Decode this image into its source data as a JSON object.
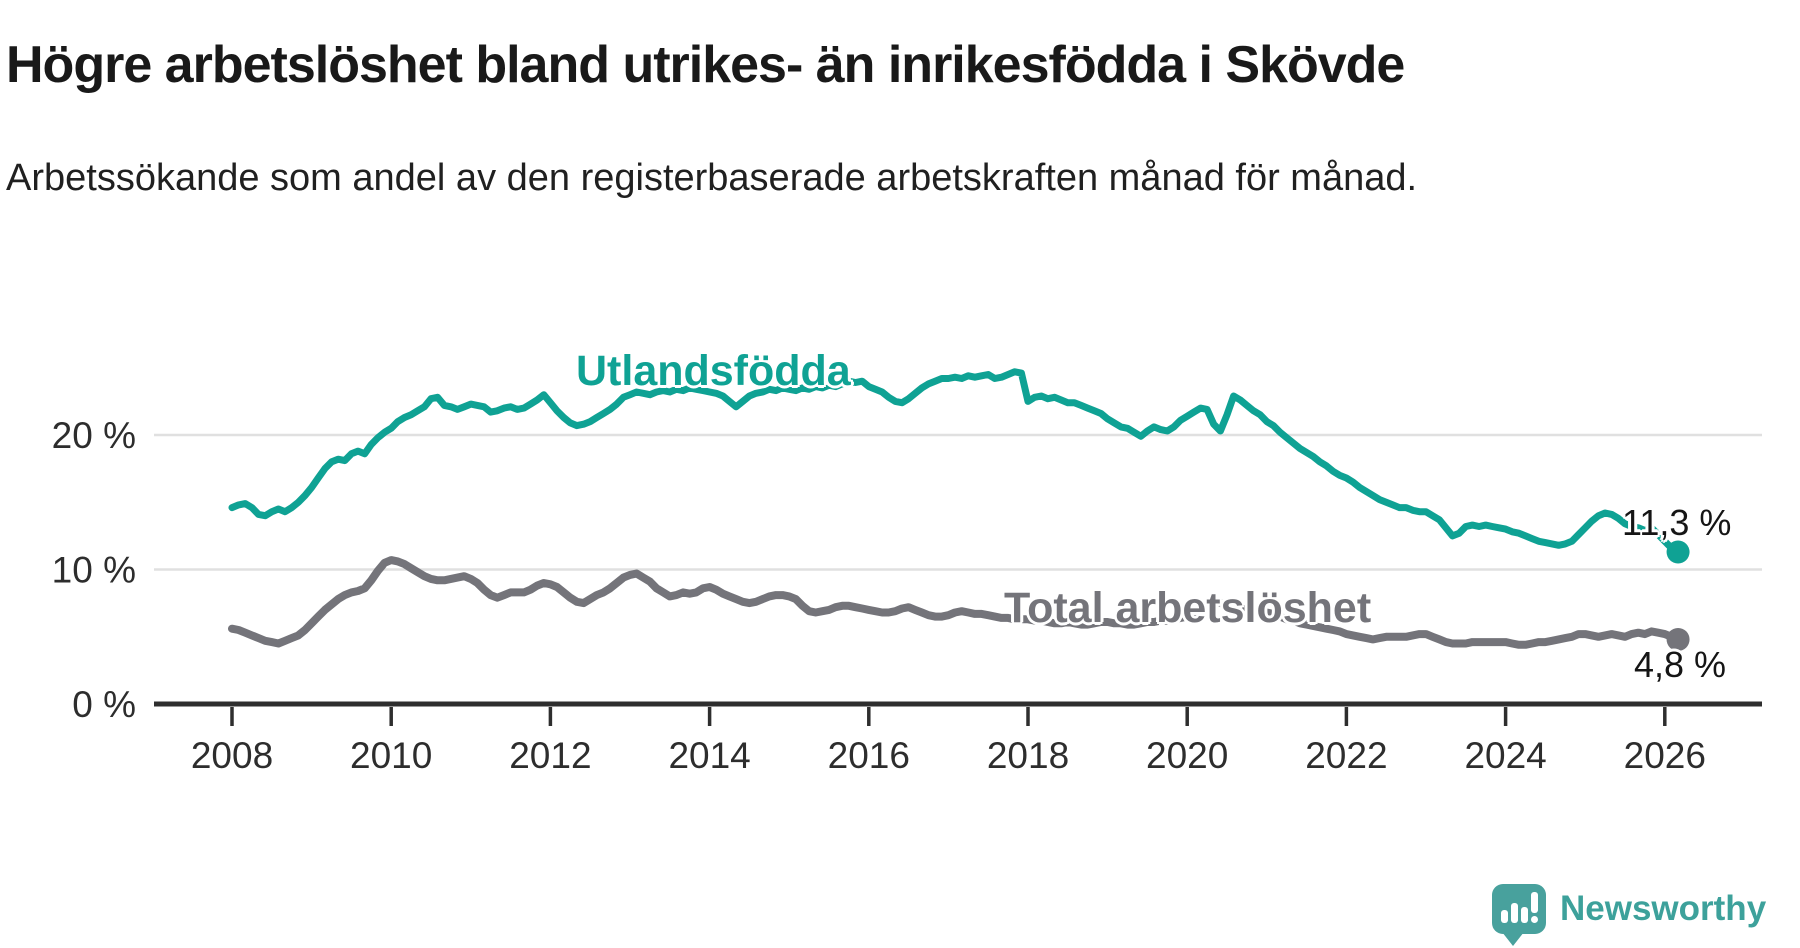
{
  "title": "Högre arbetslöshet bland utrikes- än inrikesfödda i Skövde",
  "subtitle": "Arbetssökande som andel av den registerbaserade arbetskraften månad för månad.",
  "footer": {
    "brand": "Newsworthy"
  },
  "colors": {
    "foreign_born_line": "#0fa294",
    "total_line": "#74747a",
    "gridline": "#e0e0e0",
    "axis": "#2e2e2e",
    "tick_label": "#2d2d2d",
    "brand_teal": "#48a19d"
  },
  "chart_data": {
    "type": "line",
    "title": "Högre arbetslöshet bland utrikes- än inrikesfödda i Skövde",
    "subtitle": "Arbetssökande som andel av den registerbaserade arbetskraften månad för månad.",
    "xlabel": "",
    "ylabel": "",
    "x_start": 2008.0,
    "x_frequency": "monthly",
    "x_points": 219,
    "x_ticks": [
      2008,
      2010,
      2012,
      2014,
      2016,
      2018,
      2020,
      2022,
      2024,
      2026
    ],
    "y_ticks": [
      {
        "label": "20 %",
        "value": 20
      },
      {
        "label": "10 %",
        "value": 10
      },
      {
        "label": "0 %",
        "value": 0
      }
    ],
    "y_gridlines": [
      20,
      10
    ],
    "ylim": [
      0,
      27
    ],
    "grid": "horizontal",
    "legend_position": "inline-labels",
    "series": [
      {
        "name": "Utlandsfödda",
        "color": "#0fa294",
        "stroke_width": 7,
        "end_label": "11,3 %",
        "end_value": 11.3,
        "values": [
          14.6,
          14.8,
          14.9,
          14.6,
          14.1,
          14.0,
          14.3,
          14.5,
          14.3,
          14.6,
          15.0,
          15.5,
          16.1,
          16.8,
          17.5,
          18.0,
          18.2,
          18.1,
          18.6,
          18.8,
          18.6,
          19.3,
          19.8,
          20.2,
          20.5,
          21.0,
          21.3,
          21.5,
          21.8,
          22.1,
          22.7,
          22.8,
          22.2,
          22.1,
          21.9,
          22.1,
          22.3,
          22.2,
          22.1,
          21.7,
          21.8,
          22.0,
          22.1,
          21.9,
          22.0,
          22.3,
          22.6,
          23.0,
          22.4,
          21.8,
          21.3,
          20.9,
          20.7,
          20.8,
          21.0,
          21.3,
          21.6,
          21.9,
          22.3,
          22.8,
          23.0,
          23.2,
          23.1,
          23.0,
          23.2,
          23.3,
          23.2,
          23.4,
          23.3,
          23.5,
          23.4,
          23.3,
          23.2,
          23.1,
          22.9,
          22.5,
          22.1,
          22.5,
          22.9,
          23.1,
          23.2,
          23.4,
          23.3,
          23.5,
          23.4,
          23.3,
          23.5,
          23.4,
          23.6,
          23.5,
          23.7,
          23.6,
          23.8,
          24.0,
          23.9,
          24.0,
          23.6,
          23.4,
          23.2,
          22.8,
          22.5,
          22.4,
          22.7,
          23.1,
          23.5,
          23.8,
          24.0,
          24.2,
          24.2,
          24.3,
          24.2,
          24.4,
          24.3,
          24.4,
          24.5,
          24.2,
          24.3,
          24.5,
          24.7,
          24.6,
          22.5,
          22.8,
          22.9,
          22.7,
          22.8,
          22.6,
          22.4,
          22.4,
          22.2,
          22.0,
          21.8,
          21.6,
          21.2,
          20.9,
          20.6,
          20.5,
          20.2,
          19.9,
          20.3,
          20.6,
          20.4,
          20.3,
          20.6,
          21.1,
          21.4,
          21.7,
          22.0,
          21.9,
          20.8,
          20.3,
          21.5,
          22.9,
          22.6,
          22.2,
          21.8,
          21.5,
          21.0,
          20.7,
          20.2,
          19.8,
          19.4,
          19.0,
          18.7,
          18.4,
          18.0,
          17.7,
          17.3,
          17.0,
          16.8,
          16.5,
          16.1,
          15.8,
          15.5,
          15.2,
          15.0,
          14.8,
          14.6,
          14.6,
          14.4,
          14.3,
          14.3,
          14.0,
          13.7,
          13.1,
          12.5,
          12.7,
          13.2,
          13.3,
          13.2,
          13.3,
          13.2,
          13.1,
          13.0,
          12.8,
          12.7,
          12.5,
          12.3,
          12.1,
          12.0,
          11.9,
          11.8,
          11.9,
          12.1,
          12.6,
          13.1,
          13.6,
          14.0,
          14.2,
          14.1,
          13.8,
          13.4,
          13.2,
          13.1,
          12.9,
          13.1,
          12.6,
          12.1,
          11.6,
          11.3
        ]
      },
      {
        "name": "Total arbetslöshet",
        "color": "#74747a",
        "stroke_width": 8,
        "end_label": "4,8 %",
        "end_value": 4.8,
        "values": [
          5.6,
          5.5,
          5.3,
          5.1,
          4.9,
          4.7,
          4.6,
          4.5,
          4.7,
          4.9,
          5.1,
          5.5,
          6.0,
          6.5,
          7.0,
          7.4,
          7.8,
          8.1,
          8.3,
          8.4,
          8.6,
          9.2,
          9.9,
          10.5,
          10.7,
          10.6,
          10.4,
          10.1,
          9.8,
          9.5,
          9.3,
          9.2,
          9.2,
          9.3,
          9.4,
          9.5,
          9.3,
          9.0,
          8.5,
          8.1,
          7.9,
          8.1,
          8.3,
          8.3,
          8.3,
          8.5,
          8.8,
          9.0,
          8.9,
          8.7,
          8.3,
          7.9,
          7.6,
          7.5,
          7.8,
          8.1,
          8.3,
          8.6,
          9.0,
          9.4,
          9.6,
          9.7,
          9.4,
          9.1,
          8.6,
          8.3,
          8.0,
          8.1,
          8.3,
          8.2,
          8.3,
          8.6,
          8.7,
          8.5,
          8.2,
          8.0,
          7.8,
          7.6,
          7.5,
          7.6,
          7.8,
          8.0,
          8.1,
          8.1,
          8.0,
          7.8,
          7.3,
          6.9,
          6.8,
          6.9,
          7.0,
          7.2,
          7.3,
          7.3,
          7.2,
          7.1,
          7.0,
          6.9,
          6.8,
          6.8,
          6.9,
          7.1,
          7.2,
          7.0,
          6.8,
          6.6,
          6.5,
          6.5,
          6.6,
          6.8,
          6.9,
          6.8,
          6.7,
          6.7,
          6.6,
          6.5,
          6.4,
          6.4,
          6.3,
          6.3,
          6.3,
          6.2,
          6.2,
          6.1,
          6.0,
          6.0,
          6.1,
          6.0,
          5.9,
          5.9,
          6.0,
          6.1,
          6.1,
          6.0,
          6.0,
          5.9,
          5.9,
          6.0,
          6.1,
          6.1,
          6.2,
          6.2,
          6.3,
          6.4,
          6.5,
          6.7,
          7.0,
          7.4,
          7.6,
          7.5,
          7.4,
          7.3,
          7.2,
          7.1,
          7.0,
          6.9,
          6.8,
          6.7,
          6.5,
          6.3,
          6.2,
          6.0,
          5.9,
          5.8,
          5.7,
          5.6,
          5.5,
          5.4,
          5.2,
          5.1,
          5.0,
          4.9,
          4.8,
          4.9,
          5.0,
          5.0,
          5.0,
          5.0,
          5.1,
          5.2,
          5.2,
          5.0,
          4.8,
          4.6,
          4.5,
          4.5,
          4.5,
          4.6,
          4.6,
          4.6,
          4.6,
          4.6,
          4.6,
          4.5,
          4.4,
          4.4,
          4.5,
          4.6,
          4.6,
          4.7,
          4.8,
          4.9,
          5.0,
          5.2,
          5.2,
          5.1,
          5.0,
          5.1,
          5.2,
          5.1,
          5.0,
          5.2,
          5.3,
          5.2,
          5.4,
          5.3,
          5.2,
          5.0,
          4.8
        ]
      }
    ]
  }
}
